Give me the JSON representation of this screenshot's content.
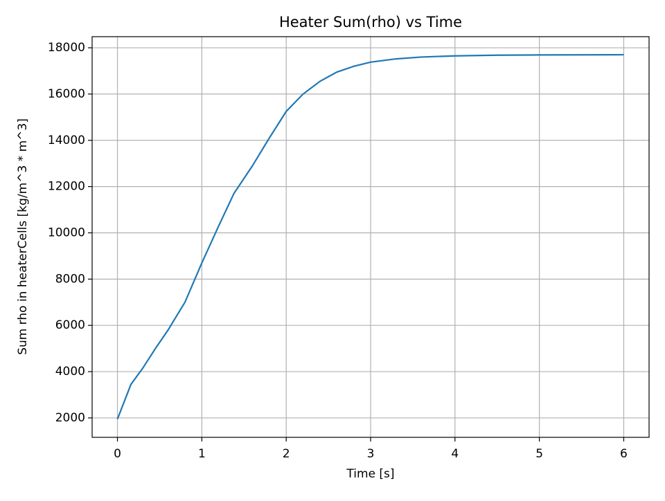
{
  "chart_data": {
    "type": "line",
    "title": "Heater Sum(rho) vs Time",
    "x_label": "Time [s]",
    "y_label": "Sum rho in heaterCells [kg/m^3 * m^3]",
    "series": [
      {
        "color": "#1f77b4",
        "x": [
          0,
          0.16,
          0.3,
          0.45,
          0.6,
          0.8,
          1.0,
          1.2,
          1.38,
          1.6,
          1.8,
          2.0,
          2.2,
          2.4,
          2.6,
          2.8,
          3.0,
          3.3,
          3.6,
          4.0,
          4.5,
          5.0,
          6.0
        ],
        "values": [
          1950,
          3450,
          4150,
          5000,
          5800,
          7000,
          8700,
          10300,
          11700,
          12900,
          14100,
          15250,
          16000,
          16550,
          16950,
          17200,
          17380,
          17520,
          17600,
          17650,
          17680,
          17690,
          17700
        ]
      }
    ],
    "xlim": [
      -0.3,
      6.3
    ],
    "xticks": [
      0,
      1,
      2,
      3,
      4,
      5,
      6
    ],
    "ylim": [
      1160,
      18480
    ],
    "yticks": [
      2000,
      4000,
      6000,
      8000,
      10000,
      12000,
      14000,
      16000,
      18000
    ],
    "grid": true
  }
}
